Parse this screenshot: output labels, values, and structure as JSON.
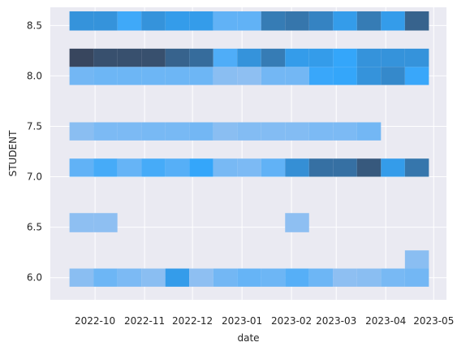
{
  "chart_data": {
    "type": "heatmap",
    "title": "",
    "xlabel": "date",
    "ylabel": "STUDENT",
    "x_type": "date",
    "x_ticks": [
      "2022-10-01",
      "2022-11-01",
      "2022-12-01",
      "2023-01-01",
      "2023-02-01",
      "2023-03-01",
      "2023-04-01",
      "2023-05-01"
    ],
    "x_tick_labels": [
      "2022-10",
      "2022-11",
      "2022-12",
      "2023-01",
      "2023-02",
      "2023-03",
      "2023-04",
      "2023-05"
    ],
    "y_ticks": [
      6.0,
      6.5,
      7.0,
      7.5,
      8.0,
      8.5
    ],
    "y_tick_labels": [
      "6.0",
      "6.5",
      "7.0",
      "7.5",
      "8.0",
      "8.5"
    ],
    "ylim": [
      5.78,
      8.68
    ],
    "grid": true,
    "background": "#eaeaf2",
    "grid_color": "#ffffff",
    "color_scale": [
      "#a5c5f0",
      "#34a6fa",
      "#38465e"
    ],
    "x_bin_edges": [
      "2022-09-15",
      "2022-09-30",
      "2022-10-15",
      "2022-10-30",
      "2022-11-14",
      "2022-11-29",
      "2022-12-14",
      "2022-12-29",
      "2023-01-13",
      "2023-01-28",
      "2023-02-12",
      "2023-02-27",
      "2023-03-14",
      "2023-03-29",
      "2023-04-13",
      "2023-04-28"
    ],
    "y_bin_edges": [
      5.91,
      6.09,
      6.27,
      6.45,
      6.64,
      6.82,
      7.0,
      7.18,
      7.36,
      7.54,
      7.73,
      7.91,
      8.09,
      8.27,
      8.45,
      8.64
    ],
    "cells": [
      {
        "xi": 0,
        "yi": 0,
        "v": 0.12
      },
      {
        "xi": 1,
        "yi": 0,
        "v": 0.25
      },
      {
        "xi": 2,
        "yi": 0,
        "v": 0.18
      },
      {
        "xi": 3,
        "yi": 0,
        "v": 0.12
      },
      {
        "xi": 4,
        "yi": 0,
        "v": 0.55
      },
      {
        "xi": 5,
        "yi": 0,
        "v": 0.1
      },
      {
        "xi": 6,
        "yi": 0,
        "v": 0.22
      },
      {
        "xi": 7,
        "yi": 0,
        "v": 0.28
      },
      {
        "xi": 8,
        "yi": 0,
        "v": 0.25
      },
      {
        "xi": 9,
        "yi": 0,
        "v": 0.35
      },
      {
        "xi": 10,
        "yi": 0,
        "v": 0.25
      },
      {
        "xi": 11,
        "yi": 0,
        "v": 0.1
      },
      {
        "xi": 12,
        "yi": 0,
        "v": 0.12
      },
      {
        "xi": 13,
        "yi": 0,
        "v": 0.2
      },
      {
        "xi": 14,
        "yi": 0,
        "v": 0.22
      },
      {
        "xi": 14,
        "yi": 1,
        "v": 0.12
      },
      {
        "xi": 0,
        "yi": 3,
        "v": 0.1
      },
      {
        "xi": 1,
        "yi": 3,
        "v": 0.1
      },
      {
        "xi": 9,
        "yi": 3,
        "v": 0.1
      },
      {
        "xi": 0,
        "yi": 6,
        "v": 0.3
      },
      {
        "xi": 1,
        "yi": 6,
        "v": 0.42
      },
      {
        "xi": 2,
        "yi": 6,
        "v": 0.28
      },
      {
        "xi": 3,
        "yi": 6,
        "v": 0.42
      },
      {
        "xi": 4,
        "yi": 6,
        "v": 0.35
      },
      {
        "xi": 5,
        "yi": 6,
        "v": 0.5
      },
      {
        "xi": 6,
        "yi": 6,
        "v": 0.2
      },
      {
        "xi": 7,
        "yi": 6,
        "v": 0.18
      },
      {
        "xi": 8,
        "yi": 6,
        "v": 0.3
      },
      {
        "xi": 9,
        "yi": 6,
        "v": 0.62
      },
      {
        "xi": 10,
        "yi": 6,
        "v": 0.78
      },
      {
        "xi": 11,
        "yi": 6,
        "v": 0.78
      },
      {
        "xi": 12,
        "yi": 6,
        "v": 0.9
      },
      {
        "xi": 13,
        "yi": 6,
        "v": 0.55
      },
      {
        "xi": 14,
        "yi": 6,
        "v": 0.75
      },
      {
        "xi": 0,
        "yi": 8,
        "v": 0.12
      },
      {
        "xi": 1,
        "yi": 8,
        "v": 0.18
      },
      {
        "xi": 2,
        "yi": 8,
        "v": 0.18
      },
      {
        "xi": 3,
        "yi": 8,
        "v": 0.2
      },
      {
        "xi": 4,
        "yi": 8,
        "v": 0.2
      },
      {
        "xi": 5,
        "yi": 8,
        "v": 0.22
      },
      {
        "xi": 6,
        "yi": 8,
        "v": 0.12
      },
      {
        "xi": 7,
        "yi": 8,
        "v": 0.15
      },
      {
        "xi": 8,
        "yi": 8,
        "v": 0.15
      },
      {
        "xi": 9,
        "yi": 8,
        "v": 0.15
      },
      {
        "xi": 10,
        "yi": 8,
        "v": 0.18
      },
      {
        "xi": 11,
        "yi": 8,
        "v": 0.18
      },
      {
        "xi": 12,
        "yi": 8,
        "v": 0.22
      },
      {
        "xi": 0,
        "yi": 11,
        "v": 0.22
      },
      {
        "xi": 1,
        "yi": 11,
        "v": 0.25
      },
      {
        "xi": 2,
        "yi": 11,
        "v": 0.25
      },
      {
        "xi": 3,
        "yi": 11,
        "v": 0.25
      },
      {
        "xi": 4,
        "yi": 11,
        "v": 0.25
      },
      {
        "xi": 5,
        "yi": 11,
        "v": 0.25
      },
      {
        "xi": 6,
        "yi": 11,
        "v": 0.12
      },
      {
        "xi": 7,
        "yi": 11,
        "v": 0.1
      },
      {
        "xi": 8,
        "yi": 11,
        "v": 0.22
      },
      {
        "xi": 9,
        "yi": 11,
        "v": 0.22
      },
      {
        "xi": 10,
        "yi": 11,
        "v": 0.48
      },
      {
        "xi": 11,
        "yi": 11,
        "v": 0.5
      },
      {
        "xi": 12,
        "yi": 11,
        "v": 0.6
      },
      {
        "xi": 13,
        "yi": 11,
        "v": 0.65
      },
      {
        "xi": 14,
        "yi": 11,
        "v": 0.48
      },
      {
        "xi": 0,
        "yi": 12,
        "v": 1.0
      },
      {
        "xi": 1,
        "yi": 12,
        "v": 0.95
      },
      {
        "xi": 2,
        "yi": 12,
        "v": 0.95
      },
      {
        "xi": 3,
        "yi": 12,
        "v": 0.95
      },
      {
        "xi": 4,
        "yi": 12,
        "v": 0.85
      },
      {
        "xi": 5,
        "yi": 12,
        "v": 0.8
      },
      {
        "xi": 6,
        "yi": 12,
        "v": 0.38
      },
      {
        "xi": 7,
        "yi": 12,
        "v": 0.6
      },
      {
        "xi": 8,
        "yi": 12,
        "v": 0.72
      },
      {
        "xi": 9,
        "yi": 12,
        "v": 0.55
      },
      {
        "xi": 10,
        "yi": 12,
        "v": 0.55
      },
      {
        "xi": 11,
        "yi": 12,
        "v": 0.5
      },
      {
        "xi": 12,
        "yi": 12,
        "v": 0.6
      },
      {
        "xi": 13,
        "yi": 12,
        "v": 0.6
      },
      {
        "xi": 14,
        "yi": 12,
        "v": 0.6
      },
      {
        "xi": 0,
        "yi": 14,
        "v": 0.6
      },
      {
        "xi": 1,
        "yi": 14,
        "v": 0.6
      },
      {
        "xi": 2,
        "yi": 14,
        "v": 0.45
      },
      {
        "xi": 3,
        "yi": 14,
        "v": 0.6
      },
      {
        "xi": 4,
        "yi": 14,
        "v": 0.55
      },
      {
        "xi": 5,
        "yi": 14,
        "v": 0.55
      },
      {
        "xi": 6,
        "yi": 14,
        "v": 0.3
      },
      {
        "xi": 7,
        "yi": 14,
        "v": 0.3
      },
      {
        "xi": 8,
        "yi": 14,
        "v": 0.72
      },
      {
        "xi": 9,
        "yi": 14,
        "v": 0.75
      },
      {
        "xi": 10,
        "yi": 14,
        "v": 0.68
      },
      {
        "xi": 11,
        "yi": 14,
        "v": 0.55
      },
      {
        "xi": 12,
        "yi": 14,
        "v": 0.72
      },
      {
        "xi": 13,
        "yi": 14,
        "v": 0.55
      },
      {
        "xi": 14,
        "yi": 14,
        "v": 0.85
      }
    ]
  }
}
